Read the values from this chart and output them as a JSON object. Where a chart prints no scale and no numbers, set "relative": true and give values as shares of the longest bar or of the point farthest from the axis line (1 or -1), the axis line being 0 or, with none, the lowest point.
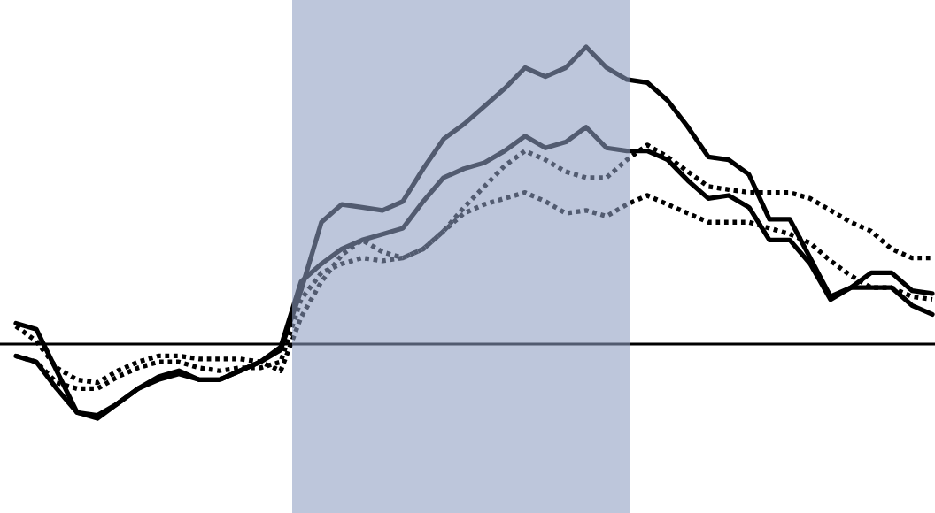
{
  "chart_data": {
    "type": "line",
    "relative": true,
    "categories": [
      null,
      null,
      null,
      null,
      null,
      null,
      null,
      null,
      null,
      null,
      null,
      null,
      null,
      null,
      null,
      null,
      null,
      null,
      null,
      null,
      null,
      null,
      null,
      null,
      null,
      null,
      null,
      null,
      null,
      null,
      null,
      null,
      null,
      null,
      null,
      null,
      null,
      null,
      null,
      null,
      null,
      null,
      null,
      null,
      null,
      null
    ],
    "series": [
      {
        "color": "#000000",
        "line_style": "solid",
        "values": [
          0.07,
          0.05,
          -0.09,
          -0.23,
          -0.25,
          -0.2,
          -0.15,
          -0.11,
          -0.09,
          -0.12,
          -0.12,
          -0.09,
          -0.06,
          -0.02,
          0.18,
          0.41,
          0.47,
          0.46,
          0.45,
          0.48,
          0.59,
          0.69,
          0.74,
          0.8,
          0.86,
          0.93,
          0.9,
          0.93,
          1.0,
          0.93,
          0.89,
          0.88,
          0.82,
          0.73,
          0.63,
          0.62,
          0.57,
          0.42,
          0.42,
          0.29,
          0.16,
          0.19,
          0.24,
          0.24,
          0.18,
          0.17
        ]
      },
      {
        "color": "#000000",
        "line_style": "solid",
        "values": [
          -0.04,
          -0.06,
          -0.15,
          -0.23,
          -0.24,
          -0.2,
          -0.15,
          -0.12,
          -0.1,
          -0.12,
          -0.12,
          -0.09,
          -0.06,
          -0.01,
          0.21,
          0.27,
          0.32,
          0.35,
          0.37,
          0.39,
          0.48,
          0.56,
          0.59,
          0.61,
          0.65,
          0.7,
          0.66,
          0.68,
          0.73,
          0.66,
          0.65,
          0.65,
          0.62,
          0.55,
          0.49,
          0.5,
          0.46,
          0.35,
          0.35,
          0.27,
          0.15,
          0.19,
          0.19,
          0.19,
          0.13,
          0.1
        ]
      },
      {
        "color": "#000000",
        "line_style": "dotted",
        "values": [
          0.06,
          0.01,
          -0.08,
          -0.12,
          -0.13,
          -0.09,
          -0.06,
          -0.04,
          -0.04,
          -0.05,
          -0.05,
          -0.05,
          -0.06,
          -0.09,
          0.09,
          0.21,
          0.3,
          0.35,
          0.31,
          0.29,
          0.32,
          0.38,
          0.46,
          0.53,
          0.6,
          0.65,
          0.62,
          0.58,
          0.56,
          0.56,
          0.62,
          0.67,
          0.63,
          0.58,
          0.53,
          0.52,
          0.51,
          0.51,
          0.51,
          0.49,
          0.45,
          0.41,
          0.38,
          0.32,
          0.29,
          0.29
        ]
      },
      {
        "color": "#000000",
        "line_style": "dotted",
        "values": [
          -0.04,
          -0.06,
          -0.13,
          -0.15,
          -0.15,
          -0.11,
          -0.08,
          -0.06,
          -0.06,
          -0.08,
          -0.09,
          -0.08,
          -0.08,
          -0.06,
          0.15,
          0.24,
          0.27,
          0.29,
          0.28,
          0.29,
          0.32,
          0.38,
          0.44,
          0.47,
          0.49,
          0.51,
          0.48,
          0.44,
          0.45,
          0.43,
          0.47,
          0.5,
          0.47,
          0.44,
          0.41,
          0.41,
          0.41,
          0.39,
          0.37,
          0.34,
          0.28,
          0.23,
          0.19,
          0.19,
          0.16,
          0.15
        ]
      }
    ]
  }
}
